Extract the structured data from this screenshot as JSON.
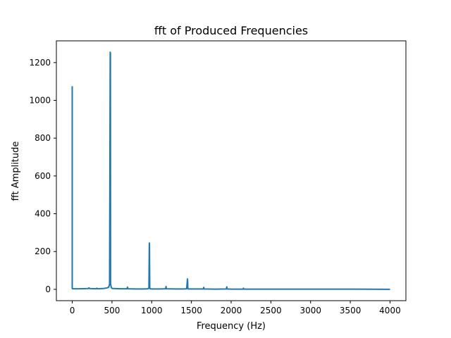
{
  "chart_data": {
    "type": "line",
    "title": "fft of Produced Frequencies",
    "xlabel": "Frequency (Hz)",
    "ylabel": "fft Amplitude",
    "xlim": [
      -200,
      4200
    ],
    "ylim": [
      -60,
      1315
    ],
    "grid": false,
    "xticks": [
      0,
      500,
      1000,
      1500,
      2000,
      2500,
      3000,
      3500,
      4000
    ],
    "yticks": [
      0,
      200,
      400,
      600,
      800,
      1000,
      1200
    ],
    "series": [
      {
        "color": "#1f77b4",
        "x": [
          0,
          0,
          5,
          100,
          200,
          210,
          220,
          300,
          310,
          320,
          400,
          440,
          460,
          470,
          478,
          480,
          482,
          490,
          500,
          600,
          690,
          695,
          700,
          800,
          900,
          950,
          965,
          970,
          972,
          975,
          980,
          1000,
          1100,
          1175,
          1180,
          1185,
          1300,
          1400,
          1440,
          1450,
          1452,
          1455,
          1460,
          1470,
          1600,
          1650,
          1655,
          1660,
          1800,
          1940,
          1945,
          1950,
          2000,
          2100,
          2150,
          2155,
          2160,
          2500,
          3000,
          3500,
          4000
        ],
        "y": [
          1075,
          5,
          3,
          3,
          4,
          8,
          4,
          3,
          6,
          3,
          5,
          8,
          12,
          28,
          1255,
          1250,
          30,
          12,
          5,
          3,
          3,
          12,
          3,
          2,
          2,
          3,
          6,
          245,
          240,
          8,
          3,
          2,
          2,
          3,
          15,
          3,
          2,
          2,
          3,
          55,
          50,
          5,
          2,
          2,
          2,
          2,
          10,
          2,
          1,
          2,
          13,
          2,
          1,
          1,
          1,
          6,
          1,
          1,
          1,
          1,
          0
        ]
      }
    ]
  }
}
